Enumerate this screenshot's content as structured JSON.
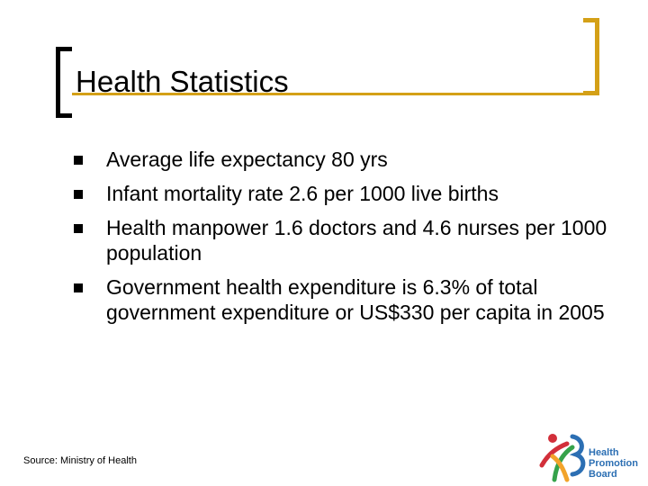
{
  "slide": {
    "title": "Health Statistics",
    "bullets": [
      "Average life expectancy 80 yrs",
      "Infant mortality rate 2.6 per 1000 live births",
      "Health manpower 1.6 doctors and 4.6 nurses per 1000 population",
      "Government health expenditure is 6.3% of total government expenditure or US$330 per capita in 2005"
    ],
    "source": "Source: Ministry of Health"
  },
  "logo": {
    "name": "health-promotion-board-logo",
    "lines": [
      "Health",
      "Promotion",
      "Board"
    ]
  },
  "colors": {
    "accent_gold": "#D4A017",
    "text": "#000000",
    "logo_blue": "#2C6FB3",
    "logo_red": "#D22F3A",
    "logo_green": "#35A24A",
    "logo_orange": "#F2A32A"
  }
}
